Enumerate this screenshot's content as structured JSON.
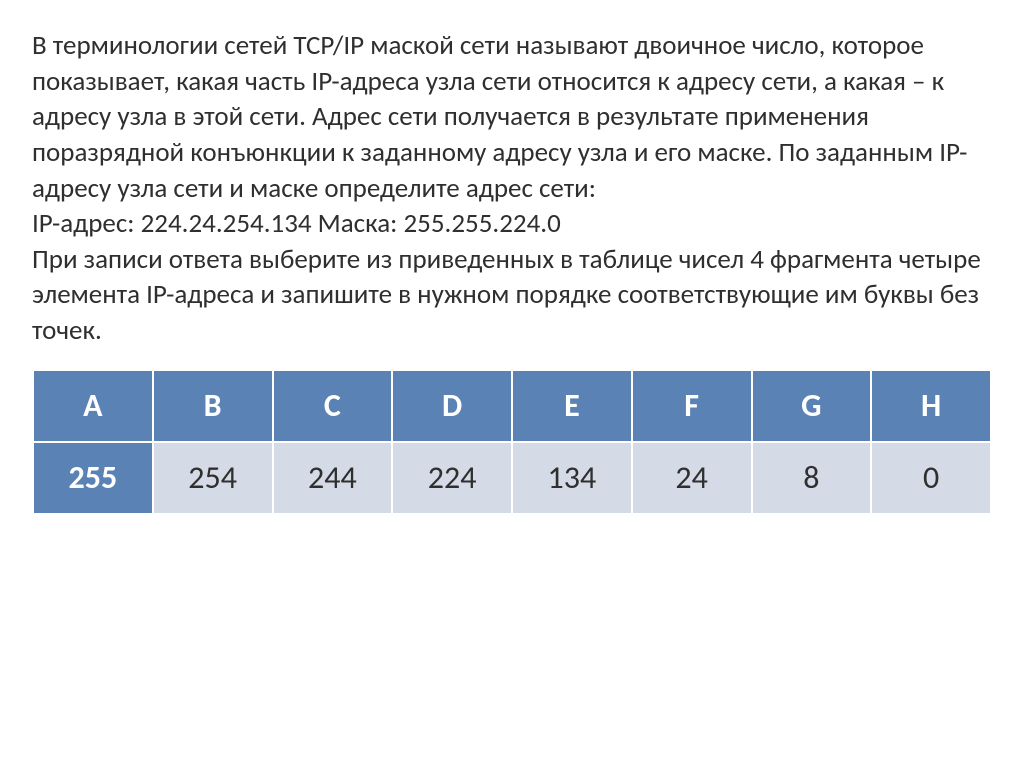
{
  "paragraph": "В терминологии сетей TCP/IP маской сети называют двоичное число, которое показывает, какая часть IP-адреса  узла сети относится к адресу сети, а какая – к адресу узла в этой сети. Адрес сети получается в результате применения поразрядной конъюнкции к заданному адресу узла и его маске. По заданным IP-адресу узла сети и маске определите адрес сети:\nIP-адрес: 224.24.254.134       Маска: 255.255.224.0\nПри записи ответа выберите из приведенных в таблице чисел 4 фрагмента четыре элемента IP-адреса и запишите в нужном порядке соответствующие им буквы без точек.",
  "table": {
    "headers": [
      "A",
      "B",
      "C",
      "D",
      "E",
      "F",
      "G",
      "H"
    ],
    "values": [
      "255",
      "254",
      "244",
      "224",
      "134",
      "24",
      "8",
      "0"
    ],
    "highlight_index": 0,
    "header_bg": "#5a82b5",
    "header_fg": "#ffffff",
    "cell_bg": "#d4dae6",
    "cell_fg": "#2f2f2f",
    "border_color": "#ffffff",
    "header_fontsize": 32,
    "cell_fontsize": 32
  }
}
